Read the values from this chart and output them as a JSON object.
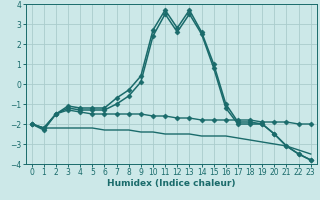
{
  "xlabel": "Humidex (Indice chaleur)",
  "bg_color": "#cce8e8",
  "grid_color": "#aacccc",
  "line_color": "#1a6b6b",
  "xlim": [
    -0.5,
    23.5
  ],
  "ylim": [
    -4,
    4
  ],
  "xticks": [
    0,
    1,
    2,
    3,
    4,
    5,
    6,
    7,
    8,
    9,
    10,
    11,
    12,
    13,
    14,
    15,
    16,
    17,
    18,
    19,
    20,
    21,
    22,
    23
  ],
  "yticks": [
    -4,
    -3,
    -2,
    -1,
    0,
    1,
    2,
    3,
    4
  ],
  "series": [
    {
      "x": [
        0,
        1,
        2,
        3,
        4,
        5,
        6,
        7,
        8,
        9,
        10,
        11,
        12,
        13,
        14,
        15,
        16,
        17,
        18,
        19,
        20,
        21,
        22,
        23
      ],
      "y": [
        -2.0,
        -2.3,
        -1.5,
        -1.1,
        -1.2,
        -1.2,
        -1.2,
        -0.7,
        -0.3,
        0.4,
        2.7,
        3.7,
        2.8,
        3.7,
        2.6,
        1.0,
        -1.0,
        -1.9,
        -1.9,
        -2.0,
        -2.5,
        -3.1,
        -3.5,
        -3.8
      ],
      "marker": "D",
      "markersize": 2.5,
      "linewidth": 1.1,
      "linestyle": "-"
    },
    {
      "x": [
        0,
        1,
        2,
        3,
        4,
        5,
        6,
        7,
        8,
        9,
        10,
        11,
        12,
        13,
        14,
        15,
        16,
        17,
        18,
        19,
        20,
        21,
        22,
        23
      ],
      "y": [
        -2.0,
        -2.2,
        -1.5,
        -1.2,
        -1.3,
        -1.3,
        -1.3,
        -1.0,
        -0.6,
        0.1,
        2.4,
        3.5,
        2.6,
        3.5,
        2.5,
        0.8,
        -1.2,
        -2.0,
        -2.0,
        -2.0,
        -2.5,
        -3.1,
        -3.5,
        -3.8
      ],
      "marker": "D",
      "markersize": 2.5,
      "linewidth": 1.1,
      "linestyle": "-"
    },
    {
      "x": [
        0,
        1,
        2,
        3,
        4,
        5,
        6,
        7,
        8,
        9,
        10,
        11,
        12,
        13,
        14,
        15,
        16,
        17,
        18,
        19,
        20,
        21,
        22,
        23
      ],
      "y": [
        -2.0,
        -2.2,
        -1.5,
        -1.3,
        -1.4,
        -1.5,
        -1.5,
        -1.5,
        -1.5,
        -1.5,
        -1.6,
        -1.6,
        -1.7,
        -1.7,
        -1.8,
        -1.8,
        -1.8,
        -1.8,
        -1.8,
        -1.9,
        -1.9,
        -1.9,
        -2.0,
        -2.0
      ],
      "marker": "D",
      "markersize": 2.5,
      "linewidth": 1.0,
      "linestyle": "-"
    },
    {
      "x": [
        0,
        1,
        2,
        3,
        4,
        5,
        6,
        7,
        8,
        9,
        10,
        11,
        12,
        13,
        14,
        15,
        16,
        17,
        18,
        19,
        20,
        21,
        22,
        23
      ],
      "y": [
        -2.0,
        -2.2,
        -2.2,
        -2.2,
        -2.2,
        -2.2,
        -2.3,
        -2.3,
        -2.3,
        -2.4,
        -2.4,
        -2.5,
        -2.5,
        -2.5,
        -2.6,
        -2.6,
        -2.6,
        -2.7,
        -2.8,
        -2.9,
        -3.0,
        -3.1,
        -3.3,
        -3.5
      ],
      "marker": null,
      "markersize": 0,
      "linewidth": 1.0,
      "linestyle": "-"
    }
  ]
}
